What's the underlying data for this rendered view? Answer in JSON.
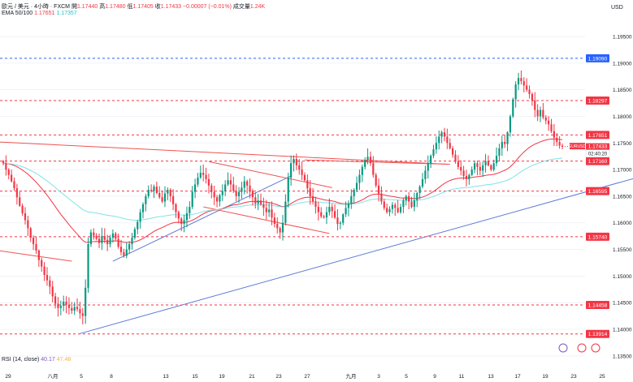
{
  "header": {
    "symbol_line": "歐元 / 美元 · 4小時 · FXCM",
    "open_label": "開",
    "open": "1.17440",
    "high_label": "高",
    "high": "1.17480",
    "low_label": "低",
    "low": "1.17405",
    "close_label": "收",
    "close": "1.17433",
    "change": "−0.00007 (−0.01%)",
    "volume_label": "成交量",
    "volume": "1.24K"
  },
  "ema": {
    "label": "EMA 50/100",
    "value1": "1.17651",
    "value2": "1.17357"
  },
  "rsi": {
    "label": "RSI (14, close)",
    "value1": "40.17",
    "value2": "47.48"
  },
  "price_axis": {
    "unit": "USD",
    "ticks": [
      "1.19500",
      "1.19000",
      "1.18500",
      "1.18000",
      "1.17500",
      "1.17000",
      "1.16500",
      "1.16000",
      "1.15500",
      "1.15000",
      "1.14500",
      "1.14000",
      "1.13500"
    ]
  },
  "time_axis": {
    "ticks": [
      "29",
      "八月",
      "5",
      "8",
      "13",
      "15",
      "19",
      "21",
      "23",
      "27",
      "九月",
      "3",
      "5",
      "9",
      "11",
      "13",
      "17",
      "19",
      "23",
      "25"
    ]
  },
  "level_lines": [
    {
      "price": 1.1909,
      "label": "1.19090",
      "style": "blue"
    },
    {
      "price": 1.18297,
      "label": "1.18297",
      "style": "red"
    },
    {
      "price": 1.17651,
      "label": "1.17651",
      "style": "red"
    },
    {
      "price": 1.17357,
      "label": "1.17357",
      "style": "cyan"
    },
    {
      "price": 1.1716,
      "label": "1.17160",
      "style": "red"
    },
    {
      "price": 1.16595,
      "label": "1.16595",
      "style": "red"
    },
    {
      "price": 1.1574,
      "label": "1.15740",
      "style": "red"
    },
    {
      "price": 1.14458,
      "label": "1.14458",
      "style": "red"
    },
    {
      "price": 1.13914,
      "label": "1.13914",
      "style": "red"
    }
  ],
  "current_price": {
    "symbol": "EURUSD",
    "price": 1.17433,
    "label": "1.17433",
    "countdown": "02:40:20"
  },
  "colors": {
    "up": "#089981",
    "down": "#f23645",
    "ema50": "#f23645",
    "ema100": "#7fe3e6",
    "trend_blue": "#5b7bd5",
    "trend_red": "#ef5350",
    "level_blue": "#2962ff",
    "grid": "#f0f3fa"
  },
  "chart_data": {
    "type": "candlestick",
    "title": "",
    "ylabel": "USD",
    "ylim": [
      1.133,
      1.1985
    ],
    "note_values": "close prices per 4h bar, approximate",
    "closes": [
      1.1712,
      1.17,
      1.169,
      1.1678,
      1.1665,
      1.1648,
      1.1632,
      1.1618,
      1.1605,
      1.159,
      1.1572,
      1.156,
      1.1548,
      1.153,
      1.1518,
      1.1502,
      1.1492,
      1.148,
      1.1462,
      1.1448,
      1.144,
      1.1444,
      1.1452,
      1.1446,
      1.144,
      1.1435,
      1.1442,
      1.1438,
      1.143,
      1.1425,
      1.1478,
      1.156,
      1.1582,
      1.1576,
      1.157,
      1.1562,
      1.1575,
      1.1568,
      1.156,
      1.1572,
      1.158,
      1.157,
      1.1555,
      1.1545,
      1.1538,
      1.155,
      1.156,
      1.1572,
      1.1588,
      1.1602,
      1.162,
      1.1635,
      1.165,
      1.1662,
      1.166,
      1.1668,
      1.1656,
      1.1648,
      1.164,
      1.1655,
      1.1662,
      1.165,
      1.1635,
      1.162,
      1.1608,
      1.1598,
      1.1605,
      1.1618,
      1.163,
      1.1658,
      1.1672,
      1.1685,
      1.1694,
      1.169,
      1.1682,
      1.167,
      1.1658,
      1.1648,
      1.164,
      1.1652,
      1.166,
      1.1672,
      1.168,
      1.1672,
      1.166,
      1.165,
      1.1658,
      1.1666,
      1.1678,
      1.167,
      1.166,
      1.1648,
      1.1636,
      1.1642,
      1.1635,
      1.1628,
      1.162,
      1.1625,
      1.161,
      1.1598,
      1.159,
      1.1582,
      1.16,
      1.164,
      1.1685,
      1.1712,
      1.172,
      1.1708,
      1.17,
      1.169,
      1.168,
      1.1665,
      1.165,
      1.164,
      1.163,
      1.162,
      1.1612,
      1.161,
      1.162,
      1.163,
      1.1622,
      1.161,
      1.1598,
      1.16,
      1.1616,
      1.1628,
      1.1636,
      1.165,
      1.1662,
      1.1675,
      1.169,
      1.1705,
      1.1718,
      1.1724,
      1.1712,
      1.169,
      1.167,
      1.1655,
      1.164,
      1.1628,
      1.162,
      1.1626,
      1.1634,
      1.1628,
      1.162,
      1.163,
      1.1642,
      1.165,
      1.164,
      1.163,
      1.1642,
      1.1656,
      1.1668,
      1.1682,
      1.1698,
      1.1712,
      1.1726,
      1.1738,
      1.175,
      1.1762,
      1.177,
      1.1762,
      1.175,
      1.174,
      1.1728,
      1.1715,
      1.1705,
      1.1698,
      1.1688,
      1.1682,
      1.169,
      1.17,
      1.1712,
      1.1705,
      1.1698,
      1.1708,
      1.1716,
      1.1708,
      1.17,
      1.1712,
      1.1726,
      1.174,
      1.1752,
      1.1748,
      1.177,
      1.18,
      1.1832,
      1.186,
      1.1872,
      1.1866,
      1.1858,
      1.185,
      1.1842,
      1.183,
      1.1812,
      1.18,
      1.1812,
      1.1798,
      1.1792,
      1.1785,
      1.1772,
      1.176,
      1.1752,
      1.1745,
      1.1743
    ]
  }
}
